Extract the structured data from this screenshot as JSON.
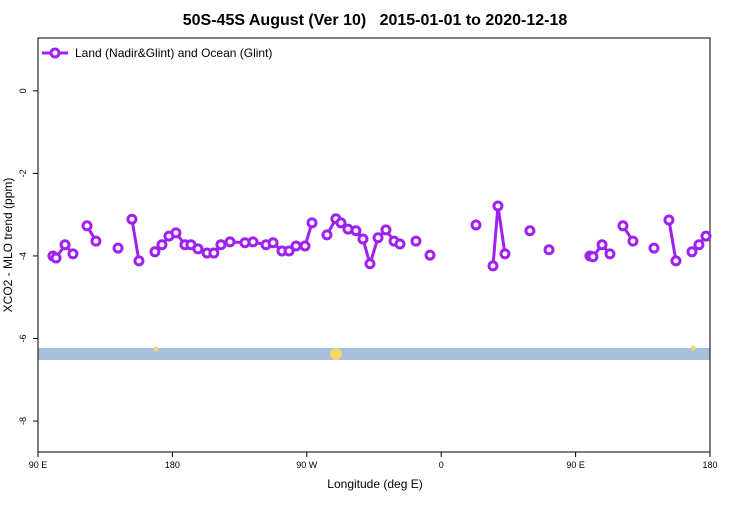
{
  "chart_data": {
    "type": "line",
    "title": "50S-45S August (Ver 10)   2015-01-01 to 2020-12-18",
    "xlabel": "Longitude (deg E)",
    "ylabel": "XCO2 - MLO trend (ppm)",
    "xlim": [
      90,
      540
    ],
    "ylim": [
      -8.75,
      1.28
    ],
    "xticks": [
      {
        "value": 90,
        "label": "90 E"
      },
      180,
      {
        "value": 270,
        "label": "90 W"
      },
      {
        "value": 360,
        "label": "0"
      },
      {
        "value": 450,
        "label": "90 E"
      },
      {
        "value": 540,
        "label": "180"
      }
    ],
    "yticks": [
      0,
      -2,
      -4,
      -6,
      -8
    ],
    "legend": "top-left",
    "x": [
      100.0,
      102.1,
      108.1,
      113.4,
      null,
      122.8,
      128.8,
      null,
      143.6,
      null,
      152.9,
      157.6,
      null,
      168.3,
      173.0,
      177.7,
      182.4,
      188.4,
      192.4,
      197.1,
      203.2,
      207.8,
      212.5,
      218.6,
      228.6,
      234.0,
      242.7,
      247.4,
      253.4,
      258.1,
      262.8,
      268.8,
      273.5,
      null,
      283.5,
      289.5,
      292.9,
      297.6,
      302.9,
      307.6,
      312.3,
      317.7,
      323.0,
      328.4,
      332.4,
      null,
      343.1,
      null,
      352.5,
      null,
      383.3,
      null,
      394.7,
      398.0,
      402.7,
      null,
      419.4,
      null,
      432.2,
      null,
      459.6,
      461.6,
      467.7,
      473.0,
      null,
      481.7,
      488.4,
      null,
      502.5,
      null,
      512.5,
      517.2,
      null,
      527.9,
      532.6,
      537.3
    ],
    "series": [
      {
        "name": "Land (Nadir&Glint) and Ocean (Glint)",
        "color": "#a020f0",
        "values": [
          -4.0,
          -4.05,
          -3.73,
          -3.95,
          null,
          -3.27,
          -3.64,
          null,
          -3.81,
          null,
          -3.11,
          -4.12,
          null,
          -3.9,
          -3.73,
          -3.52,
          -3.44,
          -3.73,
          -3.73,
          -3.83,
          -3.93,
          -3.93,
          -3.73,
          -3.66,
          -3.68,
          -3.66,
          -3.73,
          -3.68,
          -3.88,
          -3.88,
          -3.76,
          -3.76,
          -3.2,
          null,
          -3.49,
          -3.1,
          -3.2,
          -3.35,
          -3.39,
          -3.59,
          -4.19,
          -3.56,
          -3.37,
          -3.64,
          -3.71,
          null,
          -3.64,
          null,
          -3.98,
          null,
          -3.25,
          null,
          -4.24,
          -2.79,
          -3.95,
          null,
          -3.39,
          null,
          -3.85,
          null,
          -4.0,
          -4.02,
          -3.73,
          -3.95,
          null,
          -3.27,
          -3.64,
          null,
          -3.81,
          null,
          -3.13,
          -4.12,
          null,
          -3.9,
          -3.73,
          -3.52
        ]
      }
    ]
  }
}
